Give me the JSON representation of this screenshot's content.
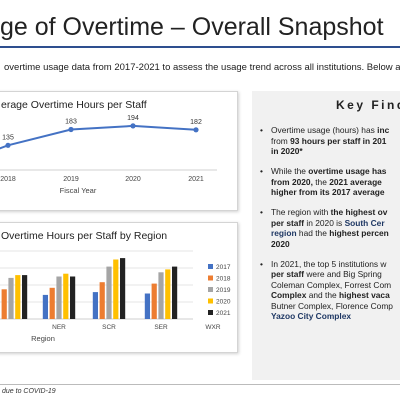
{
  "header": {
    "title": "ge of Overtime – Overall Snapshot",
    "intro": "overtime usage data from 2017-2021 to assess the usage trend across all institutions. Below are t",
    "footnote": "due to COVID-19"
  },
  "key_findings": {
    "title": "Key Find",
    "bullets": [
      [
        {
          "t": "Overtime usage (hours) has "
        },
        {
          "t": "inc",
          "b": true
        }
      ],
      [
        {
          "t": "from "
        },
        {
          "t": "93 hours per staff in 201",
          "b": true
        }
      ],
      [
        {
          "t": "in 2020*",
          "b": true
        }
      ],
      [
        {
          "t": "While the "
        },
        {
          "t": "overtime usage has",
          "b": true
        }
      ],
      [
        {
          "t": "from 2020, ",
          "b": true
        },
        {
          "t": "the "
        },
        {
          "t": "2021 average",
          "b": true
        }
      ],
      [
        {
          "t": "higher from its 2017 average",
          "b": true
        }
      ],
      [
        {
          "t": "The region with "
        },
        {
          "t": "the highest ov",
          "b": true
        }
      ],
      [
        {
          "t": "per staff",
          "b": true
        },
        {
          "t": " in 2020 is "
        },
        {
          "t": "South Cer",
          "b": true,
          "c": "blue"
        }
      ],
      [
        {
          "t": "region",
          "b": true,
          "c": "blue"
        },
        {
          "t": " had the "
        },
        {
          "t": "highest percen",
          "b": true
        }
      ],
      [
        {
          "t": "2020",
          "b": true
        }
      ],
      [
        {
          "t": "In 2021, the top 5 institutions w"
        }
      ],
      [
        {
          "t": "per staff",
          "b": true
        },
        {
          "t": " were and Big Spring"
        }
      ],
      [
        {
          "t": "Coleman Complex, Forrest Com"
        }
      ],
      [
        {
          "t": "Complex",
          "b": true
        },
        {
          "t": " and the "
        },
        {
          "t": "highest vaca",
          "b": true
        }
      ],
      [
        {
          "t": "Butner Complex, Florence Comp"
        }
      ],
      [
        {
          "t": "Yazoo City Complex",
          "b": true,
          "c": "blue"
        }
      ]
    ]
  },
  "chart_data": [
    {
      "type": "line",
      "title": "erage Overtime Hours per Staff",
      "xlabel": "Fiscal Year",
      "ylabel": "",
      "x": [
        "2018",
        "2019",
        "2020",
        "2021"
      ],
      "series": [
        {
          "values": [
            135,
            183,
            194,
            182
          ]
        }
      ],
      "data_labels": [
        "135",
        "183",
        "194",
        "182"
      ],
      "ylim": [
        60,
        230
      ],
      "grid": false,
      "colors": [
        "#4472c4"
      ]
    },
    {
      "type": "bar",
      "title": "Overtime Hours per Staff by Region",
      "xlabel": "Region",
      "ylabel": "",
      "categories": [
        "",
        "NER",
        "SCR",
        "SER",
        "WXR"
      ],
      "series": [
        {
          "name": "2017",
          "values": [
            65,
            85,
            95,
            90,
            85
          ]
        },
        {
          "name": "2018",
          "values": [
            105,
            110,
            130,
            125,
            120
          ]
        },
        {
          "name": "2019",
          "values": [
            145,
            150,
            185,
            165,
            160
          ]
        },
        {
          "name": "2020",
          "values": [
            155,
            160,
            210,
            175,
            170
          ]
        },
        {
          "name": "2021",
          "values": [
            155,
            150,
            215,
            185,
            185
          ]
        }
      ],
      "ylim": [
        0,
        240
      ],
      "legend": "right",
      "grid": true,
      "colors": [
        "#4472c4",
        "#ed7d31",
        "#a5a5a5",
        "#ffc000",
        "#222222"
      ]
    }
  ]
}
